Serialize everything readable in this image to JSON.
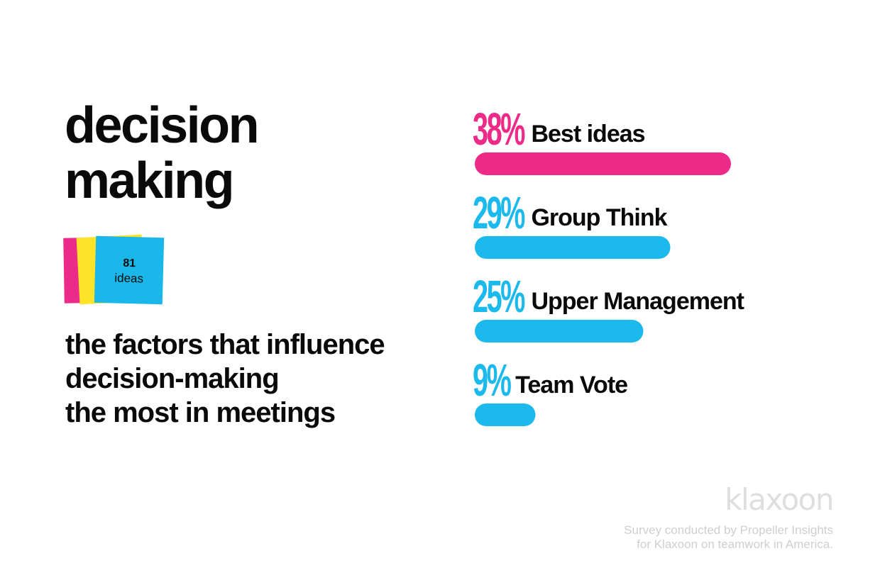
{
  "title": {
    "line1": "decision",
    "line2": "making"
  },
  "sticky": {
    "count": "81",
    "unit": "ideas"
  },
  "subtitle": {
    "line1": "the factors that influence",
    "line2": "decision-making",
    "line3": "the most in meetings"
  },
  "chart_data": {
    "type": "bar",
    "orientation": "horizontal",
    "categories": [
      "Best ideas",
      "Group Think",
      "Upper Management",
      "Team Vote"
    ],
    "values": [
      38,
      29,
      25,
      9
    ],
    "value_labels": [
      "38%",
      "29%",
      "25%",
      "9%"
    ],
    "colors": [
      "#ee2a89",
      "#1cb9ec",
      "#1cb9ec",
      "#1cb9ec"
    ],
    "unit": "%"
  },
  "brand": "klaxoon",
  "footnote": {
    "line1": "Survey conducted by Propeller Insights",
    "line2": "for Klaxoon on teamwork in America."
  }
}
